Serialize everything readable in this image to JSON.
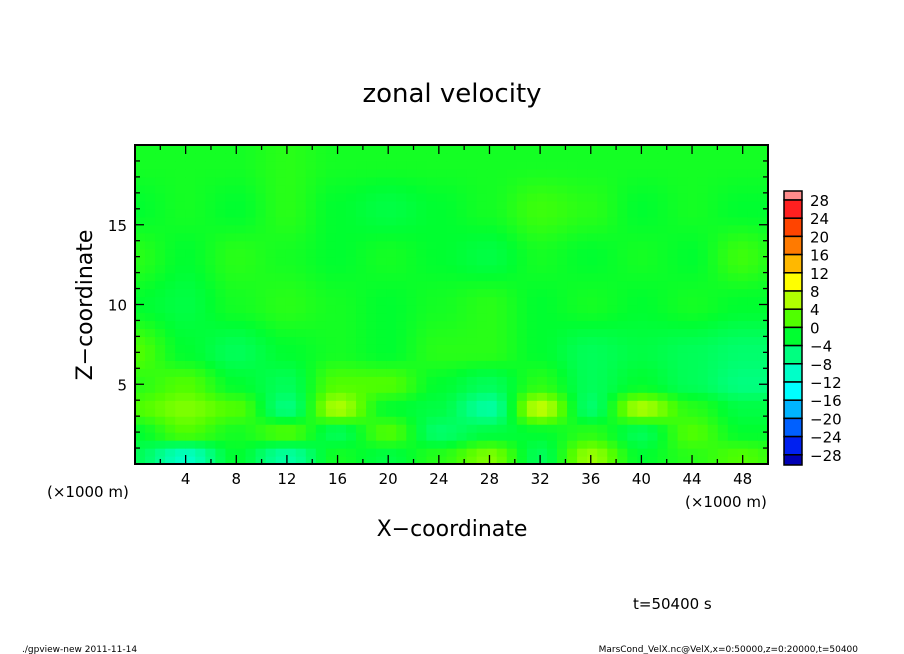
{
  "chart_data": {
    "type": "heatmap",
    "title": "zonal velocity",
    "xlabel": "X−coordinate",
    "ylabel": "Z−coordinate",
    "x_unit_left": "(×1000 m)",
    "x_unit_right": "(×1000 m)",
    "xlim": [
      0,
      50
    ],
    "ylim": [
      0,
      20
    ],
    "x_ticks": [
      4,
      8,
      12,
      16,
      20,
      24,
      28,
      32,
      36,
      40,
      44,
      48
    ],
    "y_ticks": [
      5,
      10,
      15
    ],
    "colorbar_levels": [
      28,
      24,
      20,
      16,
      12,
      8,
      4,
      0,
      -4,
      -8,
      -12,
      -16,
      -20,
      -24,
      -28
    ],
    "colorbar_colors": [
      "#ff8c8c",
      "#ff2020",
      "#ff4400",
      "#ff7a00",
      "#ffb800",
      "#ffff00",
      "#b0ff00",
      "#50ff00",
      "#00ff30",
      "#00ff80",
      "#00ffc8",
      "#00ffff",
      "#00b4ff",
      "#0060ff",
      "#0020f0",
      "#0000b4",
      "#5a14a0"
    ],
    "grid_x": [
      0,
      4,
      8,
      12,
      16,
      20,
      24,
      28,
      32,
      36,
      40,
      44,
      48,
      50
    ],
    "grid_z": [
      0.5,
      2,
      3.5,
      5,
      7,
      10,
      13,
      16,
      19
    ],
    "values": [
      [
        -4,
        -10,
        -2,
        -8,
        -1,
        -3,
        0,
        4,
        -4,
        5,
        -2,
        0,
        2,
        1
      ],
      [
        -2,
        2,
        -1,
        2,
        -4,
        2,
        -5,
        -3,
        -2,
        0,
        -4,
        2,
        -2,
        -2
      ],
      [
        2,
        4,
        2,
        -6,
        6,
        -2,
        -3,
        -8,
        7,
        -5,
        6,
        0,
        -3,
        -3
      ],
      [
        0,
        2,
        -2,
        -4,
        2,
        2,
        -2,
        -4,
        0,
        -4,
        -2,
        -4,
        -6,
        -6
      ],
      [
        2,
        -2,
        -4,
        -2,
        -1,
        -2,
        0,
        0,
        -2,
        -4,
        -3,
        -4,
        -5,
        -5
      ],
      [
        -2,
        -3,
        -1,
        0,
        -1,
        -2,
        -1,
        0,
        -2,
        -1,
        -2,
        -1,
        -2,
        -2
      ],
      [
        0,
        -2,
        0,
        -1,
        -2,
        -1,
        -2,
        -3,
        -1,
        -2,
        -1,
        -2,
        1,
        0
      ],
      [
        -2,
        -1,
        -2,
        0,
        -2,
        -3,
        -2,
        -1,
        1,
        0,
        -2,
        -1,
        -2,
        -2
      ],
      [
        -1,
        -1,
        -1,
        0,
        -1,
        -1,
        -1,
        -1,
        -1,
        -1,
        -1,
        -1,
        -1,
        -1
      ]
    ],
    "annotation": "t=50400 s"
  },
  "footer": {
    "left": "./gpview-new  2011-11-14",
    "right": "MarsCond_VelX.nc@VelX,x=0:50000,z=0:20000,t=50400"
  }
}
